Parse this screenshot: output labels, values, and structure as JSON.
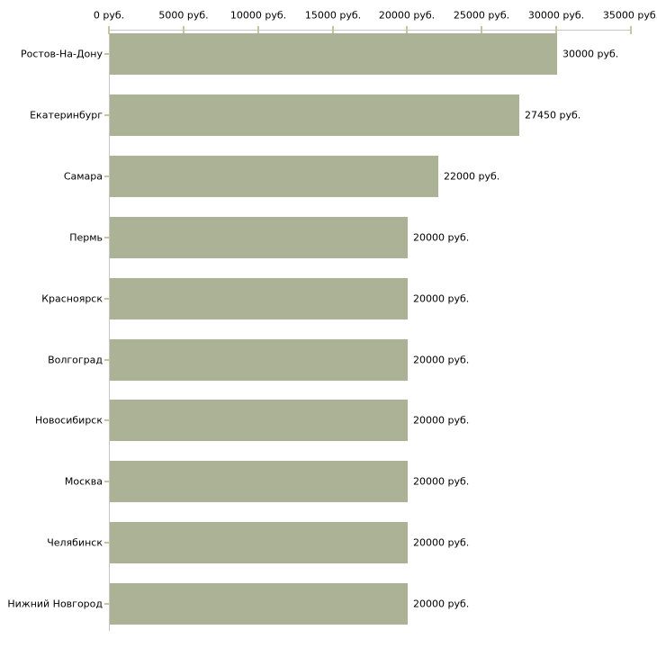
{
  "chart_data": {
    "type": "bar",
    "orientation": "horizontal",
    "title": "",
    "xlabel": "",
    "ylabel": "",
    "categories": [
      "Ростов-На-Дону",
      "Екатеринбург",
      "Самара",
      "Пермь",
      "Красноярск",
      "Волгоград",
      "Новосибирск",
      "Москва",
      "Челябинск",
      "Нижний Новгород"
    ],
    "values": [
      30000,
      27450,
      22000,
      20000,
      20000,
      20000,
      20000,
      20000,
      20000,
      20000
    ],
    "value_labels": [
      "30000 руб.",
      "27450 руб.",
      "22000 руб.",
      "20000 руб.",
      "20000 руб.",
      "20000 руб.",
      "20000 руб.",
      "20000 руб.",
      "20000 руб.",
      "20000 руб."
    ],
    "x_axis": {
      "position": "top",
      "min": 0,
      "max": 35000,
      "tick_step": 5000,
      "tick_values": [
        0,
        5000,
        10000,
        15000,
        20000,
        25000,
        30000,
        35000
      ],
      "tick_labels": [
        "0 руб.",
        "5000 руб.",
        "10000 руб.",
        "15000 руб.",
        "20000 руб.",
        "25000 руб.",
        "30000 руб.",
        "35000 руб."
      ]
    },
    "legend": null,
    "grid": false,
    "colors": {
      "bar": "#acb296",
      "tick": "#c9c49e",
      "axis_line": "#c6c6c6",
      "text": "#000000",
      "background": "#ffffff"
    }
  }
}
